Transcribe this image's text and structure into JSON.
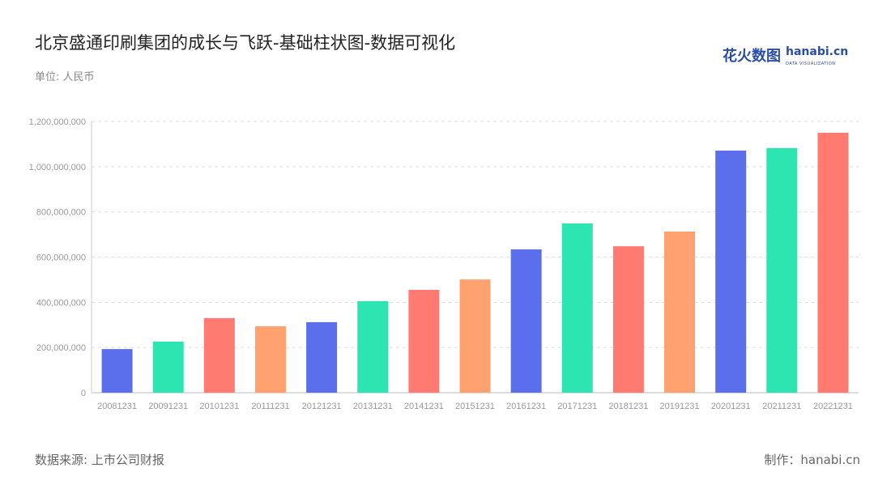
{
  "header": {
    "title": "北京盛通印刷集团的成长与飞跃-基础柱状图-数据可视化",
    "unit": "单位: 人民币"
  },
  "logo": {
    "cn": "花火数图",
    "en": "hanabi.cn",
    "sub": "DATA VISUALIZATION"
  },
  "footer": {
    "source": "数据来源: 上市公司财报",
    "maker": "制作：hanabi.cn"
  },
  "colors": [
    "#5b6fec",
    "#2de5b0",
    "#ff7a70",
    "#ffa26f"
  ],
  "chart_data": {
    "type": "bar",
    "title": "北京盛通印刷集团的成长与飞跃-基础柱状图-数据可视化",
    "ylabel": "人民币",
    "ylim": [
      0,
      1200000000
    ],
    "yticks": [
      0,
      200000000,
      400000000,
      600000000,
      800000000,
      1000000000,
      1200000000
    ],
    "ytick_labels": [
      "0",
      "200,000,000",
      "400,000,000",
      "600,000,000",
      "800,000,000",
      "1,000,000,000",
      "1,200,000,000"
    ],
    "grid": true,
    "categories": [
      "20081231",
      "20091231",
      "20101231",
      "20111231",
      "20121231",
      "20131231",
      "20141231",
      "20151231",
      "20161231",
      "20171231",
      "20181231",
      "20191231",
      "20201231",
      "20211231",
      "20221231"
    ],
    "values": [
      193000000,
      226000000,
      330000000,
      294000000,
      312000000,
      405000000,
      455000000,
      501000000,
      634000000,
      749000000,
      648000000,
      713000000,
      1071000000,
      1082000000,
      1150000000
    ]
  }
}
